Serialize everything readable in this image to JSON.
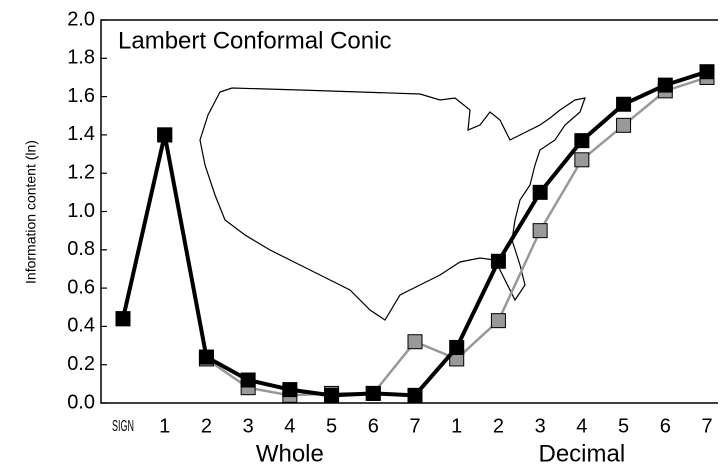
{
  "chart_data": {
    "type": "line",
    "title": "Lambert Conformal Conic",
    "y_label": "Information content (ln)",
    "categories": [
      "SIGN",
      "1",
      "2",
      "3",
      "4",
      "5",
      "6",
      "7",
      "1",
      "2",
      "3",
      "4",
      "5",
      "6",
      "7"
    ],
    "group_labels": [
      "Whole",
      "Decimal"
    ],
    "series": [
      {
        "color": "#999999",
        "values": [
          0.44,
          1.4,
          0.23,
          0.08,
          0.04,
          0.05,
          0.05,
          0.32,
          0.23,
          0.43,
          0.9,
          1.27,
          1.45,
          1.63,
          1.7
        ]
      },
      {
        "color": "#000000",
        "values": [
          0.44,
          1.4,
          0.24,
          0.12,
          0.07,
          0.04,
          0.05,
          0.04,
          0.29,
          0.74,
          1.1,
          1.37,
          1.56,
          1.66,
          1.73
        ]
      }
    ],
    "ylim": [
      0,
      2
    ],
    "yticks": [
      {
        "value": 0,
        "label": "0.0"
      },
      0.2,
      0.4,
      0.6,
      0.8,
      {
        "value": 1,
        "label": "1.0"
      },
      1.2,
      1.4,
      1.6,
      1.8,
      {
        "value": 2,
        "label": "2.0"
      }
    ]
  }
}
